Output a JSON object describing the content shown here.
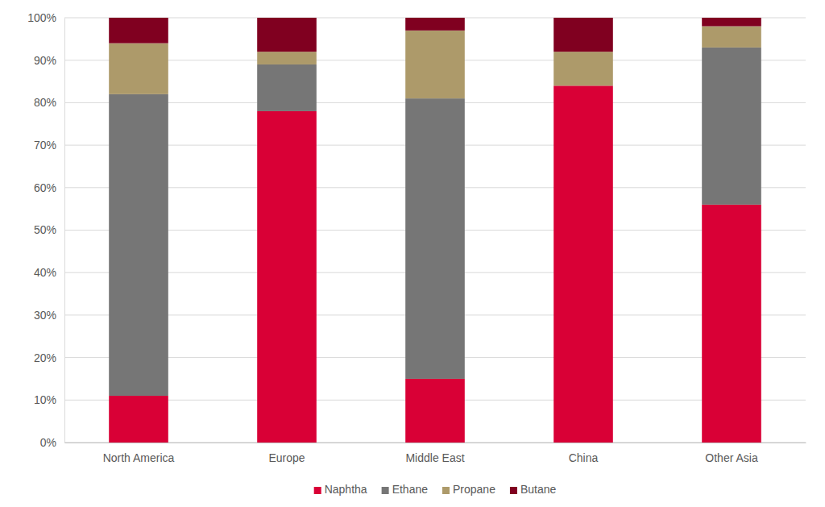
{
  "chart_data": {
    "type": "bar",
    "stacked": true,
    "grid": true,
    "legend": "bottom",
    "categories": [
      "North America",
      "Europe",
      "Middle East",
      "China",
      "Other Asia"
    ],
    "series": [
      {
        "name": "Naphtha",
        "color": "#d90036",
        "values": [
          11,
          78,
          15,
          84,
          56
        ]
      },
      {
        "name": "Ethane",
        "color": "#767676",
        "values": [
          71,
          11,
          66,
          0,
          37
        ]
      },
      {
        "name": "Propane",
        "color": "#ad9a6a",
        "values": [
          12,
          3,
          16,
          8,
          5
        ]
      },
      {
        "name": "Butane",
        "color": "#800020",
        "values": [
          6,
          8,
          3,
          8,
          2
        ]
      }
    ],
    "ylim": [
      0,
      100
    ],
    "yticks": [
      {
        "value": 0,
        "label": "0%"
      },
      {
        "value": 10,
        "label": "10%"
      },
      {
        "value": 20,
        "label": "20%"
      },
      {
        "value": 30,
        "label": "30%"
      },
      {
        "value": 40,
        "label": "40%"
      },
      {
        "value": 50,
        "label": "50%"
      },
      {
        "value": 60,
        "label": "60%"
      },
      {
        "value": 70,
        "label": "70%"
      },
      {
        "value": 80,
        "label": "80%"
      },
      {
        "value": 90,
        "label": "90%"
      },
      {
        "value": 100,
        "label": "100%"
      }
    ]
  }
}
